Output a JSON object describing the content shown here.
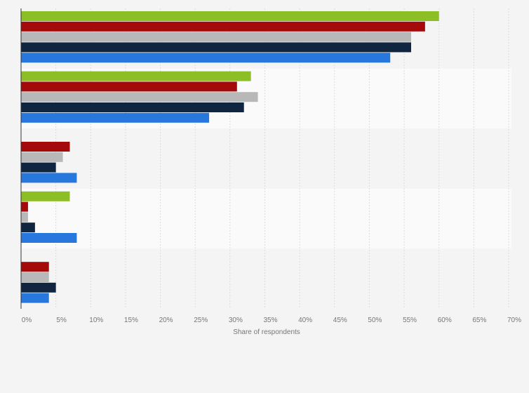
{
  "chart_data": {
    "type": "bar",
    "orientation": "horizontal",
    "title": "",
    "xlabel": "Share of respondents",
    "ylabel": "",
    "xlim": [
      0,
      70
    ],
    "x_ticks": [
      "0%",
      "5%",
      "10%",
      "15%",
      "20%",
      "25%",
      "30%",
      "35%",
      "40%",
      "45%",
      "50%",
      "55%",
      "60%",
      "65%",
      "70%"
    ],
    "grid": true,
    "legend": "none",
    "categories": [
      "",
      "",
      "",
      "",
      ""
    ],
    "series": [
      {
        "color": "#8cbf26",
        "values": [
          60,
          33,
          0,
          7,
          0
        ]
      },
      {
        "color": "#a50a0a",
        "values": [
          58,
          31,
          7,
          1,
          4
        ]
      },
      {
        "color": "#b8b8b8",
        "values": [
          56,
          34,
          6,
          1,
          4
        ]
      },
      {
        "color": "#0f2540",
        "values": [
          56,
          32,
          5,
          2,
          5
        ]
      },
      {
        "color": "#2877dc",
        "values": [
          53,
          27,
          8,
          8,
          4
        ]
      }
    ],
    "unit": "%"
  }
}
